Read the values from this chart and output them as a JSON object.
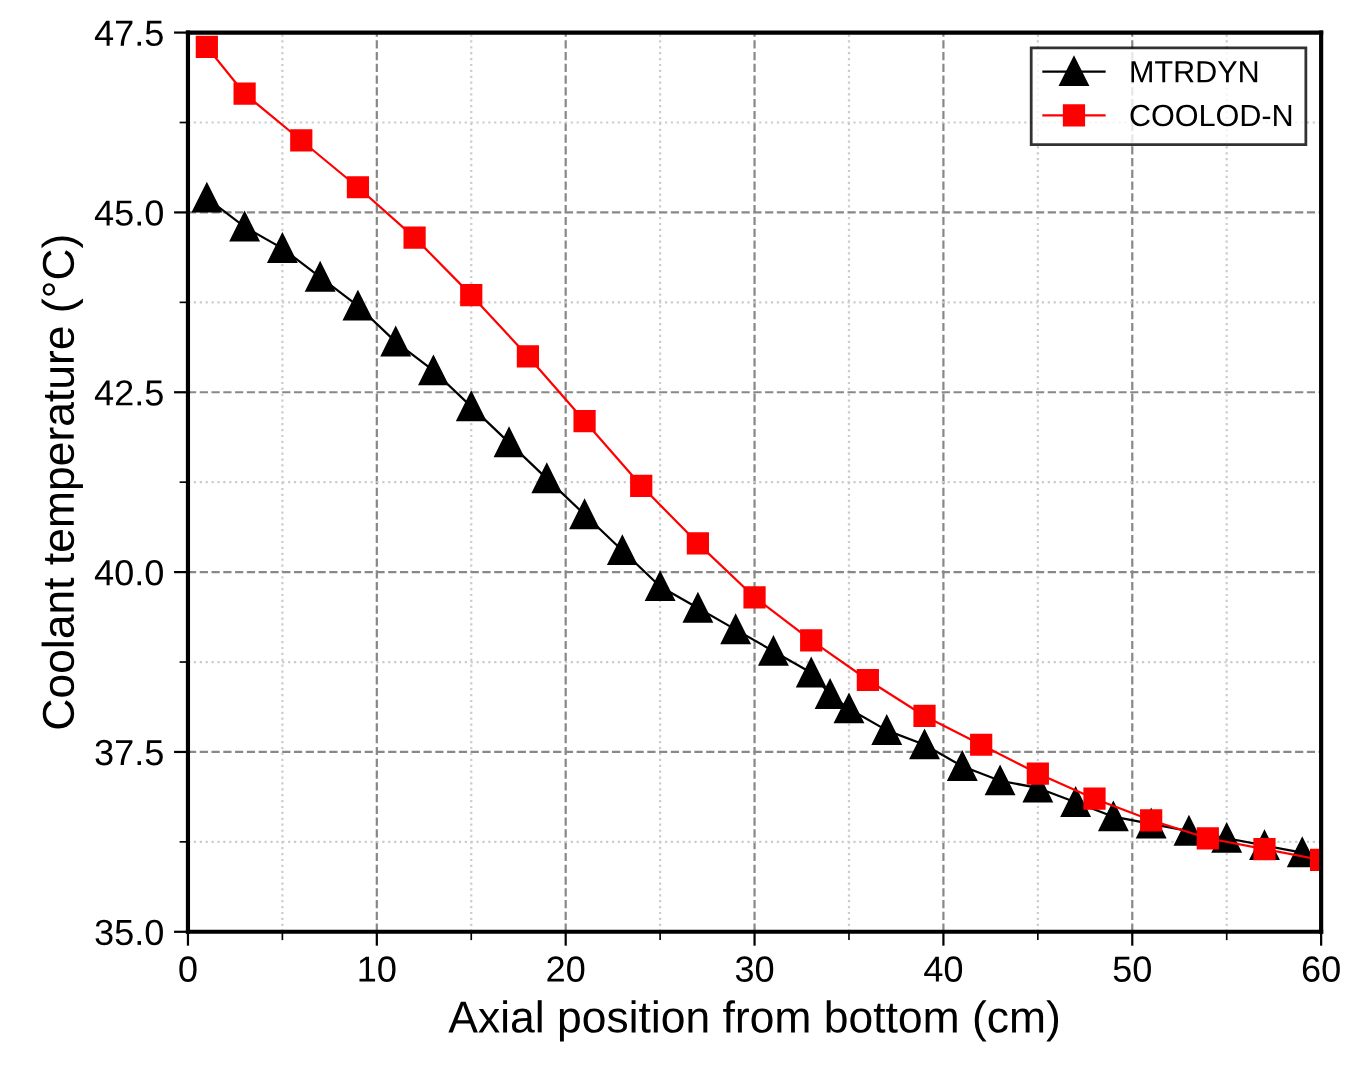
{
  "chart_data": {
    "type": "line",
    "xlabel": "Axial position from bottom (cm)",
    "ylabel": "Coolant temperature (°C)",
    "xlim": [
      0,
      60
    ],
    "xticks": [
      0,
      10,
      20,
      30,
      40,
      50,
      60
    ],
    "ylim": [
      35,
      47.5
    ],
    "yticks": [
      {
        "value": 35,
        "label": "35.0"
      },
      {
        "value": 37.5,
        "label": "37.5"
      },
      {
        "value": 40,
        "label": "40.0"
      },
      {
        "value": 42.5,
        "label": "42.5"
      },
      {
        "value": 45,
        "label": "45.0"
      },
      {
        "value": 47.5,
        "label": "47.5"
      }
    ],
    "grid": true,
    "legend": "top right",
    "series": [
      {
        "name": "MTRDYN",
        "color": "#000000",
        "marker": "triangle",
        "x": [
          1,
          3,
          5,
          7,
          9,
          11,
          13,
          15,
          17,
          19,
          21,
          23,
          25,
          27,
          29,
          31,
          33,
          34,
          35,
          37,
          39,
          41,
          43,
          45,
          47,
          49,
          51,
          53,
          55,
          57,
          59
        ],
        "values": [
          45.2,
          44.8,
          44.5,
          44.1,
          43.7,
          43.2,
          42.8,
          42.3,
          41.8,
          41.3,
          40.8,
          40.3,
          39.8,
          39.5,
          39.2,
          38.9,
          38.6,
          38.3,
          38.1,
          37.8,
          37.6,
          37.3,
          37.1,
          37.0,
          36.8,
          36.6,
          36.5,
          36.4,
          36.3,
          36.2,
          36.1
        ]
      },
      {
        "name": "COOLOD-N",
        "color": "#ff0000",
        "marker": "square",
        "x": [
          1,
          3,
          6,
          9,
          12,
          15,
          18,
          21,
          24,
          27,
          30,
          33,
          36,
          39,
          42,
          45,
          48,
          51,
          54,
          57,
          60
        ],
        "values": [
          47.3,
          46.65,
          46.0,
          45.35,
          44.65,
          43.85,
          43.0,
          42.1,
          41.2,
          40.4,
          39.65,
          39.05,
          38.5,
          38.0,
          37.6,
          37.2,
          36.85,
          36.55,
          36.3,
          36.15,
          36.0
        ]
      }
    ]
  }
}
